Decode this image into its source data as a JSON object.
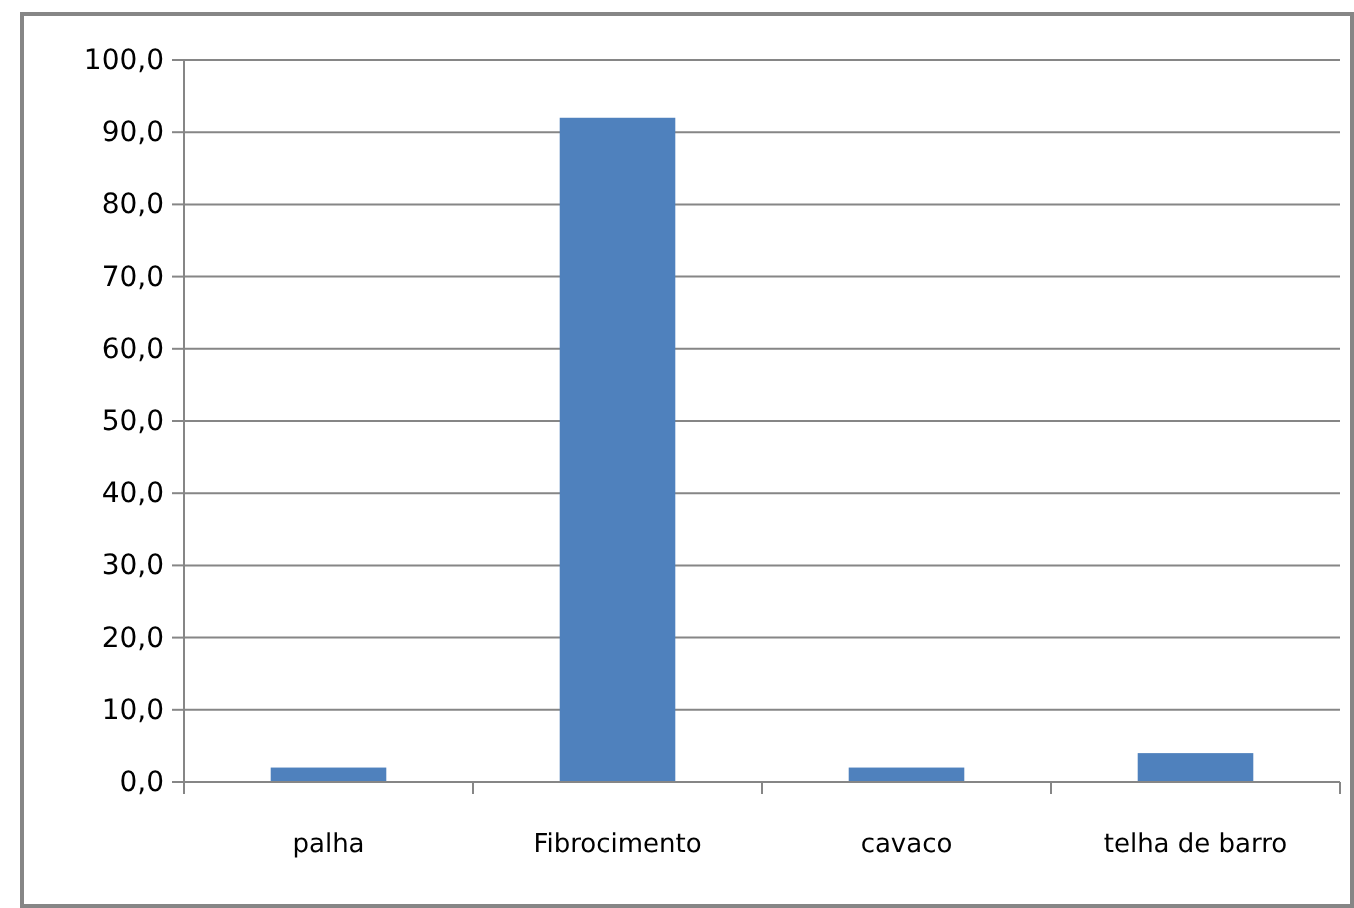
{
  "chart_data": {
    "type": "bar",
    "categories": [
      "palha",
      "Fibrocimento",
      "cavaco",
      "telha de barro"
    ],
    "values": [
      2.0,
      92.0,
      2.0,
      4.0
    ],
    "color": "#4f81bd",
    "ylim": [
      0,
      100
    ],
    "yticks": [
      {
        "value": 0,
        "label": "0,0"
      },
      {
        "value": 10,
        "label": "10,0"
      },
      {
        "value": 20,
        "label": "20,0"
      },
      {
        "value": 30,
        "label": "30,0"
      },
      {
        "value": 40,
        "label": "40,0"
      },
      {
        "value": 50,
        "label": "50,0"
      },
      {
        "value": 60,
        "label": "60,0"
      },
      {
        "value": 70,
        "label": "70,0"
      },
      {
        "value": 80,
        "label": "80,0"
      },
      {
        "value": 90,
        "label": "90,0"
      },
      {
        "value": 100,
        "label": "100,0"
      }
    ],
    "grid": "y"
  }
}
